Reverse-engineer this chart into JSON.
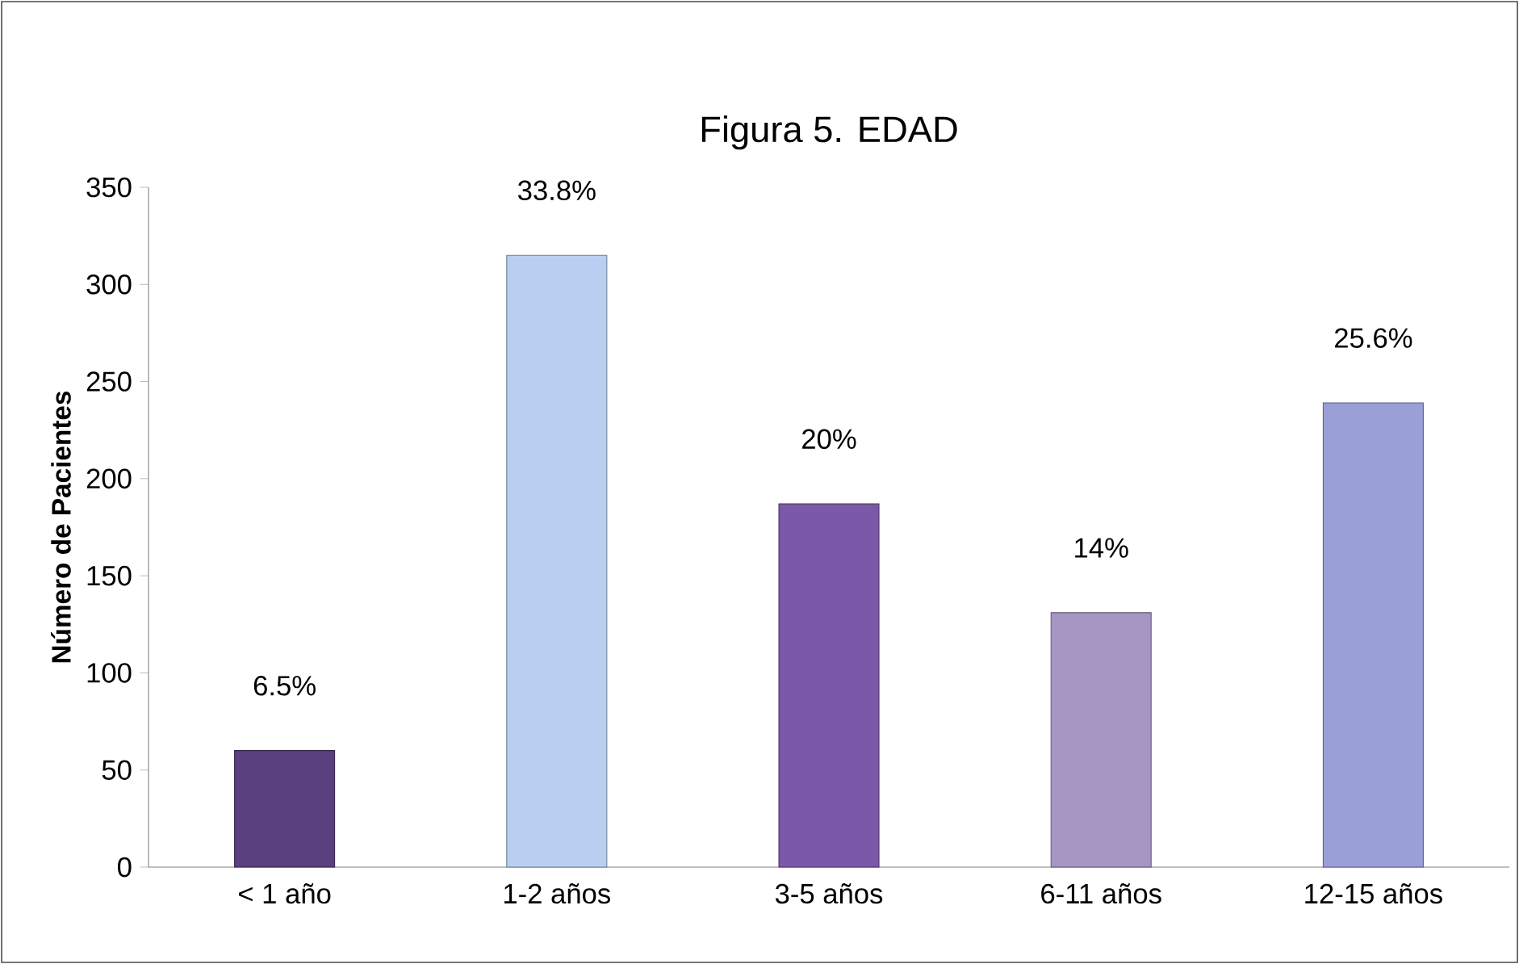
{
  "chart_data": {
    "type": "bar",
    "title": "Figura 5. EDAD",
    "ylabel": "**Número de  Pacientes**",
    "categories": [
      "< 1 año",
      "1-2 años",
      "3-5 años",
      "6-11 años",
      "12-15 años"
    ],
    "values": [
      60,
      315,
      187,
      131,
      239
    ],
    "annotations": [
      {
        "text": "6.5%",
        "x": "< 1 año",
        "y": 60
      },
      {
        "text": "33.8%",
        "x": "1-2 años",
        "y": 315
      },
      {
        "text": "20%",
        "x": "3-5 años",
        "y": 187
      },
      {
        "text": "14%",
        "x": "6-11 años",
        "y": 131
      },
      {
        "text": "25.6%",
        "x": "12-15 años",
        "y": 239
      }
    ],
    "colors": [
      "#5a407e",
      "#b8cff2",
      "#7c58a8",
      "#a596c4",
      "#9a9fd8"
    ],
    "ylim": [
      0,
      350
    ],
    "yticks": [
      0,
      50,
      100,
      150,
      200,
      250,
      300,
      350
    ]
  }
}
